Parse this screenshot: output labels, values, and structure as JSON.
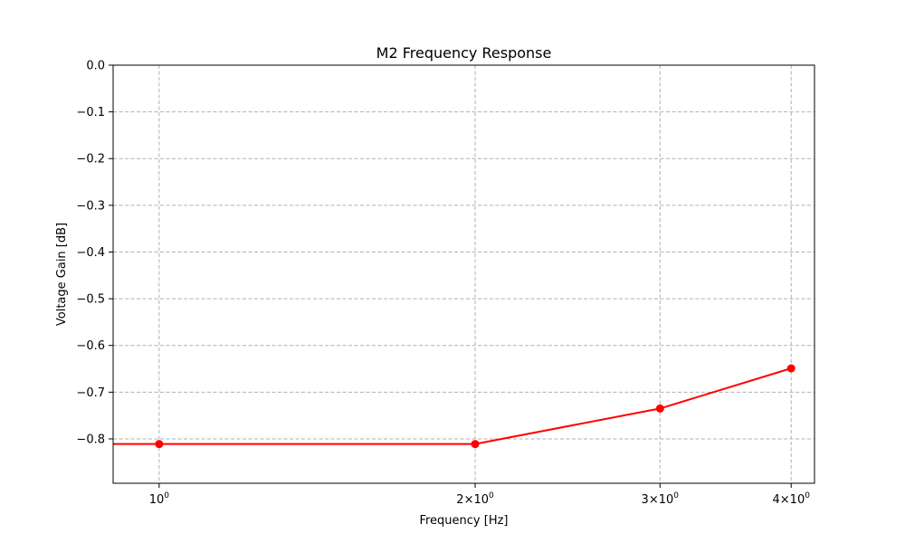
{
  "chart_data": {
    "type": "line",
    "title": "M2 Frequency Response",
    "xlabel": "Frequency [Hz]",
    "ylabel": "Voltage Gain [dB]",
    "x_scale": "log",
    "xlim": [
      0.904,
      4.21
    ],
    "ylim": [
      -0.895,
      0.0
    ],
    "x_ticks": [
      {
        "value": 1,
        "mantissa": "",
        "exponent": "0"
      },
      {
        "value": 2,
        "mantissa": "2",
        "exponent": "0"
      },
      {
        "value": 3,
        "mantissa": "3",
        "exponent": "0"
      },
      {
        "value": 4,
        "mantissa": "4",
        "exponent": "0"
      }
    ],
    "y_ticks": [
      {
        "value": 0.0,
        "label": "0.0"
      },
      {
        "value": -0.1,
        "label": "−0.1"
      },
      {
        "value": -0.2,
        "label": "−0.2"
      },
      {
        "value": -0.3,
        "label": "−0.3"
      },
      {
        "value": -0.4,
        "label": "−0.4"
      },
      {
        "value": -0.5,
        "label": "−0.5"
      },
      {
        "value": -0.6,
        "label": "−0.6"
      },
      {
        "value": -0.7,
        "label": "−0.7"
      },
      {
        "value": -0.8,
        "label": "−0.8"
      }
    ],
    "grid": true,
    "series": [
      {
        "color": "#ff0000",
        "marker": "circle",
        "x": [
          1,
          2,
          3,
          4
        ],
        "y": [
          -0.811,
          -0.811,
          -0.735,
          -0.649
        ]
      }
    ],
    "line_extends_to_left_edge": true
  }
}
